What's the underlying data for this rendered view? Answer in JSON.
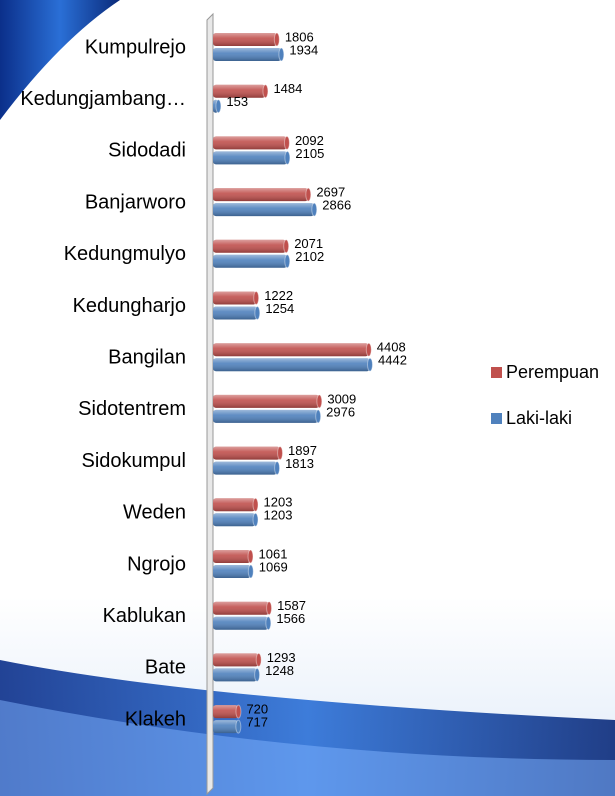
{
  "chart_data": {
    "type": "bar",
    "orientation": "horizontal",
    "categories": [
      "Kumpulrejo",
      "Kedungjambang…",
      "Sidodadi",
      "Banjarworo",
      "Kedungmulyo",
      "Kedungharjo",
      "Bangilan",
      "Sidotentrem",
      "Sidokumpul",
      "Weden",
      "Ngrojo",
      "Kablukan",
      "Bate",
      "Klakeh"
    ],
    "series": [
      {
        "name": "Perempuan",
        "color": "#c0504d",
        "values": [
          1806,
          1484,
          2092,
          2697,
          2071,
          1222,
          4408,
          3009,
          1897,
          1203,
          1061,
          1587,
          1293,
          720
        ]
      },
      {
        "name": "Laki-laki",
        "color": "#4f81bd",
        "values": [
          1934,
          153,
          2105,
          2866,
          2102,
          1254,
          4442,
          2976,
          1813,
          1203,
          1069,
          1566,
          1248,
          717
        ]
      }
    ],
    "legend": "right"
  }
}
